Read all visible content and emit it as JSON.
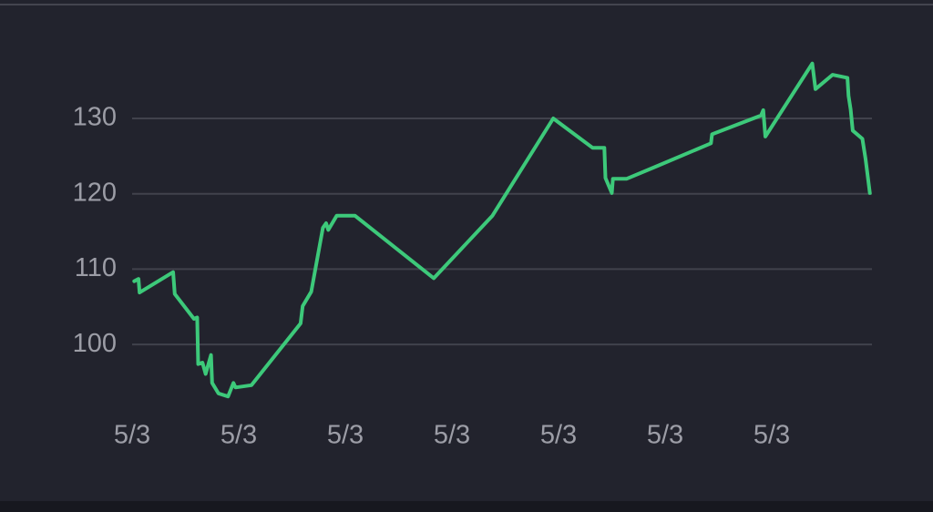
{
  "chart_data": {
    "type": "line",
    "x": [
      0.02,
      0.06,
      0.07,
      0.385,
      0.4,
      0.58,
      0.61,
      0.62,
      0.66,
      0.69,
      0.74,
      0.75,
      0.81,
      0.9,
      0.95,
      0.97,
      1.12,
      1.58,
      1.6,
      1.68,
      1.79,
      1.82,
      1.84,
      1.92,
      2.09,
      2.83,
      3.38,
      3.95,
      4.32,
      4.43,
      4.44,
      4.5,
      4.51,
      4.64,
      4.91,
      5.43,
      5.44,
      5.9,
      5.92,
      5.94,
      6.38,
      6.41,
      6.57,
      6.71,
      6.72,
      6.74,
      6.76,
      6.85,
      6.88,
      6.92
    ],
    "series": [
      {
        "color": "#3dc97a",
        "values": [
          108.4,
          108.7,
          106.9,
          109.6,
          106.7,
          103.4,
          103.6,
          97.4,
          97.6,
          96.1,
          98.6,
          94.9,
          93.5,
          93.1,
          94.9,
          94.3,
          94.6,
          102.8,
          105.1,
          107.0,
          115.5,
          116.1,
          115.2,
          117.1,
          117.1,
          108.8,
          117.1,
          130.0,
          126.1,
          126.1,
          122.1,
          120.1,
          122.0,
          122.0,
          123.6,
          126.7,
          127.9,
          130.4,
          131.1,
          127.6,
          137.3,
          133.9,
          135.8,
          135.4,
          133.0,
          131.2,
          128.4,
          127.3,
          124.6,
          120.1
        ]
      }
    ],
    "xlim": [
      0,
      6.94
    ],
    "xticks": [
      {
        "value": 0,
        "label": "5/3"
      },
      {
        "value": 1,
        "label": "5/3"
      },
      {
        "value": 2,
        "label": "5/3"
      },
      {
        "value": 3,
        "label": "5/3"
      },
      {
        "value": 4,
        "label": "5/3"
      },
      {
        "value": 5,
        "label": "5/3"
      },
      {
        "value": 6,
        "label": "5/3"
      }
    ],
    "ylim": [
      92,
      139
    ],
    "yticks": [
      100,
      110,
      120,
      130
    ],
    "grid": true
  }
}
